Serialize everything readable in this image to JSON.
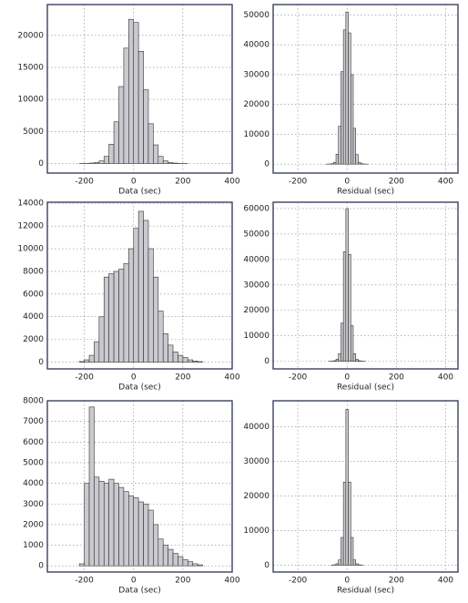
{
  "chart_data": [
    {
      "type": "histogram",
      "xlabel": "Data (sec)",
      "color": "#c9c9cf",
      "grid": true,
      "bins": [
        -300,
        -280,
        -260,
        -240,
        -220,
        -200,
        -180,
        -160,
        -140,
        -120,
        -100,
        -80,
        -60,
        -40,
        -20,
        0,
        20,
        40,
        60,
        80,
        100,
        120,
        140,
        160,
        180,
        200,
        220,
        240,
        260,
        280,
        300
      ],
      "values": [
        0,
        0,
        0,
        0,
        10,
        20,
        60,
        150,
        400,
        1100,
        3000,
        6500,
        12000,
        18000,
        22500,
        22000,
        17500,
        11500,
        6200,
        2900,
        1100,
        400,
        150,
        60,
        20,
        10,
        0,
        0,
        0,
        0
      ],
      "xlim": [
        -350,
        400
      ],
      "ylim": [
        -1500,
        24800
      ],
      "xticks": [
        -200,
        0,
        200,
        400
      ],
      "yticks": [
        0,
        5000,
        10000,
        15000,
        20000
      ]
    },
    {
      "type": "histogram",
      "xlabel": "Residual (sec)",
      "color": "#c9c9cf",
      "grid": true,
      "bins": [
        -105,
        -95,
        -85,
        -75,
        -65,
        -55,
        -45,
        -35,
        -25,
        -15,
        -5,
        5,
        15,
        25,
        35,
        45,
        55,
        65,
        75,
        85,
        95,
        105
      ],
      "values": [
        0,
        0,
        10,
        40,
        150,
        600,
        3300,
        12700,
        31000,
        45000,
        51000,
        44000,
        30000,
        12000,
        3200,
        600,
        150,
        40,
        10,
        0,
        0
      ],
      "xlim": [
        -300,
        450
      ],
      "ylim": [
        -3000,
        53500
      ],
      "xticks": [
        -200,
        0,
        200,
        400
      ],
      "yticks": [
        0,
        10000,
        20000,
        30000,
        40000,
        50000
      ]
    },
    {
      "type": "histogram",
      "xlabel": "Data (sec)",
      "color": "#c9c9cf",
      "grid": true,
      "bins": [
        -300,
        -280,
        -260,
        -240,
        -220,
        -200,
        -180,
        -160,
        -140,
        -120,
        -100,
        -80,
        -60,
        -40,
        -20,
        0,
        20,
        40,
        60,
        80,
        100,
        120,
        140,
        160,
        180,
        200,
        220,
        240,
        260,
        280,
        300
      ],
      "values": [
        0,
        0,
        0,
        0,
        50,
        200,
        600,
        1800,
        4000,
        7500,
        7800,
        8000,
        8200,
        8700,
        10000,
        11800,
        13300,
        12500,
        10000,
        7500,
        4500,
        2500,
        1500,
        900,
        600,
        400,
        200,
        100,
        40,
        0
      ],
      "xlim": [
        -350,
        400
      ],
      "ylim": [
        -600,
        14100
      ],
      "xticks": [
        -200,
        0,
        200,
        400
      ],
      "yticks": [
        0,
        2000,
        4000,
        6000,
        8000,
        10000,
        12000,
        14000
      ]
    },
    {
      "type": "histogram",
      "xlabel": "Residual (sec)",
      "color": "#c9c9cf",
      "grid": true,
      "bins": [
        -105,
        -95,
        -85,
        -75,
        -65,
        -55,
        -45,
        -35,
        -25,
        -15,
        -5,
        5,
        15,
        25,
        35,
        45,
        55,
        65,
        75,
        85,
        95,
        105
      ],
      "values": [
        0,
        0,
        0,
        10,
        50,
        200,
        800,
        3000,
        15000,
        43000,
        60000,
        42000,
        14000,
        3000,
        800,
        200,
        50,
        10,
        0,
        0,
        0
      ],
      "xlim": [
        -300,
        450
      ],
      "ylim": [
        -3000,
        62500
      ],
      "xticks": [
        -200,
        0,
        200,
        400
      ],
      "yticks": [
        0,
        10000,
        20000,
        30000,
        40000,
        50000,
        60000
      ]
    },
    {
      "type": "histogram",
      "xlabel": "Data (sec)",
      "color": "#c9c9cf",
      "grid": true,
      "bins": [
        -300,
        -280,
        -260,
        -240,
        -220,
        -200,
        -180,
        -160,
        -140,
        -120,
        -100,
        -80,
        -60,
        -40,
        -20,
        0,
        20,
        40,
        60,
        80,
        100,
        120,
        140,
        160,
        180,
        200,
        220,
        240,
        260,
        280,
        300
      ],
      "values": [
        0,
        0,
        0,
        0,
        100,
        4000,
        7700,
        4300,
        4100,
        4000,
        4200,
        4000,
        3800,
        3600,
        3400,
        3300,
        3100,
        3000,
        2700,
        2000,
        1300,
        1000,
        800,
        600,
        450,
        300,
        200,
        100,
        50,
        0
      ],
      "xlim": [
        -350,
        400
      ],
      "ylim": [
        -300,
        8000
      ],
      "xticks": [
        -200,
        0,
        200,
        400
      ],
      "yticks": [
        0,
        1000,
        2000,
        3000,
        4000,
        5000,
        6000,
        7000,
        8000
      ]
    },
    {
      "type": "histogram",
      "xlabel": "Residual (sec)",
      "color": "#c9c9cf",
      "grid": true,
      "bins": [
        -105,
        -95,
        -85,
        -75,
        -65,
        -55,
        -45,
        -35,
        -25,
        -15,
        -5,
        5,
        15,
        25,
        35,
        45,
        55,
        65,
        75,
        85,
        95,
        105
      ],
      "values": [
        0,
        0,
        0,
        0,
        20,
        100,
        400,
        1500,
        8000,
        24000,
        45000,
        24000,
        8000,
        1500,
        400,
        100,
        20,
        0,
        0,
        0,
        0
      ],
      "xlim": [
        -300,
        450
      ],
      "ylim": [
        -2000,
        47500
      ],
      "xticks": [
        -200,
        0,
        200,
        400
      ],
      "yticks": [
        0,
        10000,
        20000,
        30000,
        40000
      ]
    }
  ]
}
